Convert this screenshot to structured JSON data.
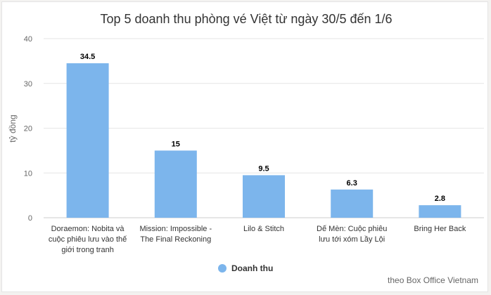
{
  "chart_data": {
    "type": "bar",
    "title": "Top 5 doanh thu phòng vé Việt từ ngày 30/5 đến 1/6",
    "ylabel": "tỷ đồng",
    "xlabel": "",
    "ylim": [
      0,
      40
    ],
    "yticks": [
      "0",
      "10",
      "20",
      "30",
      "40"
    ],
    "categories": [
      [
        "Doraemon: Nobita và",
        "cuộc phiêu lưu vào thế",
        "giới trong tranh"
      ],
      [
        "Mission: Impossible -",
        "The Final Reckoning"
      ],
      [
        "Lilo & Stitch"
      ],
      [
        "Dế Mèn: Cuộc phiêu",
        "lưu tới xóm Lầy Lội"
      ],
      [
        "Bring Her Back"
      ]
    ],
    "series": [
      {
        "name": "Doanh thu",
        "values": [
          34.5,
          15,
          9.5,
          6.3,
          2.8
        ],
        "labels": [
          "34.5",
          "15",
          "9.5",
          "6.3",
          "2.8"
        ]
      }
    ],
    "legend_position": "bottom",
    "grid": true,
    "colors": {
      "bar": "#7cb5ec",
      "grid": "#e6e6e6",
      "text": "#333333"
    }
  },
  "source_note": "theo Box Office Vietnam"
}
